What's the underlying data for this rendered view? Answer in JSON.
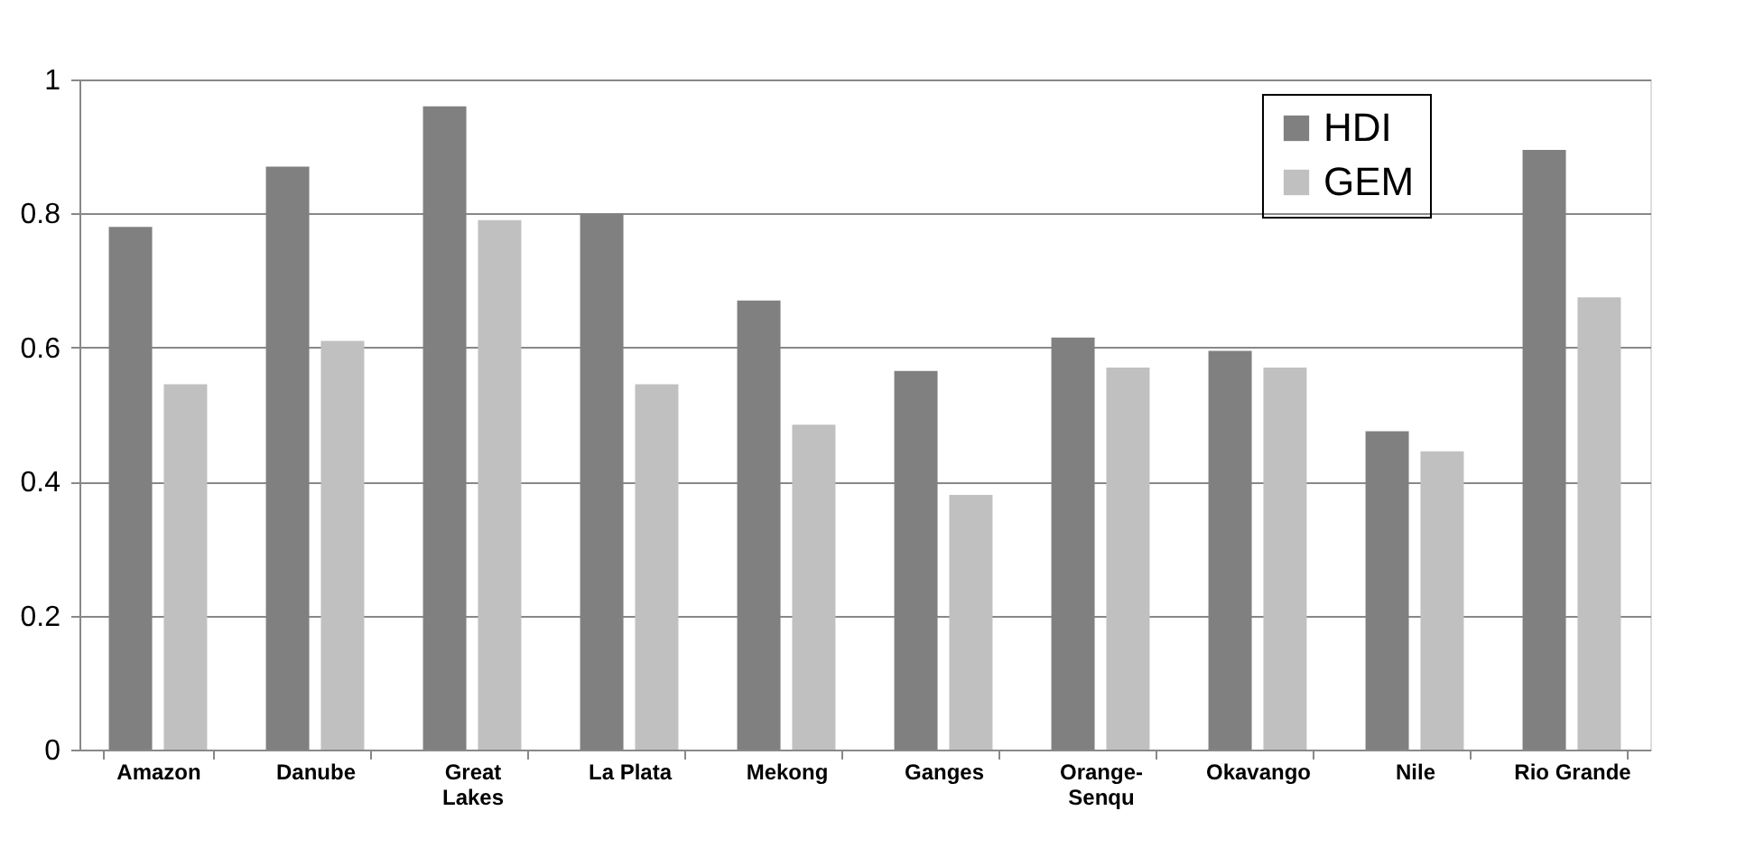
{
  "chart_data": {
    "type": "bar",
    "categories": [
      "Amazon",
      "Danube",
      "Great Lakes",
      "La Plata",
      "Mekong",
      "Ganges",
      "Orange-Senqu",
      "Okavango",
      "Nile",
      "Rio Grande"
    ],
    "series": [
      {
        "name": "HDI",
        "color": "#808080",
        "values": [
          0.78,
          0.87,
          0.96,
          0.8,
          0.67,
          0.565,
          0.615,
          0.595,
          0.475,
          0.895
        ]
      },
      {
        "name": "GEM",
        "color": "#c0c0c0",
        "values": [
          0.545,
          0.61,
          0.79,
          0.545,
          0.485,
          0.38,
          0.57,
          0.57,
          0.445,
          0.675
        ]
      }
    ],
    "ylim": [
      0,
      1
    ],
    "yticks": [
      0,
      0.2,
      0.4,
      0.6,
      0.8,
      1
    ],
    "grid": "y",
    "legend": "top right"
  }
}
